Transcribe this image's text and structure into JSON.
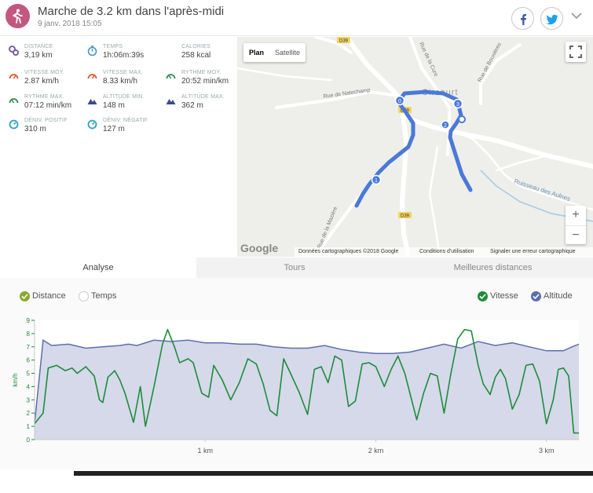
{
  "header": {
    "title": "Marche de 3.2 km dans l'après-midi",
    "date": "9 janv. 2018 15:05",
    "activity_icon": "walk-icon",
    "accent_color": "#c2587f"
  },
  "stats": [
    {
      "label": "DISTANCE",
      "value": "3,19 km",
      "icon": "distance-icon",
      "color": "#7b5ea7"
    },
    {
      "label": "TEMPS",
      "value": "1h:06m:39s",
      "icon": "stopwatch-icon",
      "color": "#3b8fd8"
    },
    {
      "label": "CALORIES",
      "value": "258 kcal",
      "icon": "flame-icon",
      "color": "#e0582b"
    },
    {
      "label": "VITESSE MOY.",
      "value": "2.87 km/h",
      "icon": "speedometer-icon",
      "color": "#e0582b"
    },
    {
      "label": "VITESSE MAX.",
      "value": "8.33 km/h",
      "icon": "speedometer-icon",
      "color": "#e0582b"
    },
    {
      "label": "RYTHME MOY.",
      "value": "20:52 min/km",
      "icon": "pace-icon",
      "color": "#2e8b57"
    },
    {
      "label": "RYTHME MAX.",
      "value": "07:12 min/km",
      "icon": "pace-icon",
      "color": "#2e8b57"
    },
    {
      "label": "ALTITUDE MIN.",
      "value": "148 m",
      "icon": "mountain-icon",
      "color": "#3a4a8c"
    },
    {
      "label": "ALTITUDE MAX.",
      "value": "362 m",
      "icon": "mountain-icon",
      "color": "#3a4a8c"
    },
    {
      "label": "DÉNIV. POSITIF",
      "value": "310 m",
      "icon": "gauge-icon",
      "color": "#29a3c4"
    },
    {
      "label": "DÉNIV. NÉGATIF",
      "value": "127 m",
      "icon": "gauge-icon",
      "color": "#29a3c4"
    }
  ],
  "map": {
    "type_options": [
      "Plan",
      "Satellite"
    ],
    "selected_type": "Plan",
    "zoom_in": "+",
    "zoom_out": "−",
    "logo": "Google",
    "footer": [
      "Données cartographiques ©2018 Google",
      "Conditions d'utilisation",
      "Signaler une erreur cartographique"
    ],
    "labels": {
      "road_d39a": "D39",
      "road_d39b": "D39",
      "road_d39c": "D39",
      "rue_natechamp": "Rue de Natechamp",
      "rue_baulieres": "Rue de Bouxières",
      "rue_cure": "Rue de la Cure",
      "ruisseau": "Ruisseau des Aulnes",
      "rue_maziere": "Rue de la Mazière",
      "village": "Circourt"
    },
    "markers": [
      "0",
      "1",
      "2",
      "3"
    ]
  },
  "tabs": [
    {
      "label": "Analyse",
      "active": true
    },
    {
      "label": "Tours",
      "active": false
    },
    {
      "label": "Meilleures distances",
      "active": false
    }
  ],
  "chart_toggles": {
    "left": [
      {
        "label": "Distance",
        "checked": true,
        "color": "#8aa82e"
      },
      {
        "label": "Temps",
        "checked": false,
        "color": "#cccccc"
      }
    ],
    "right": [
      {
        "label": "Vitesse",
        "checked": true,
        "color": "#1e8c3a"
      },
      {
        "label": "Altitude",
        "checked": true,
        "color": "#5b6fae"
      }
    ]
  },
  "chart_data": {
    "type": "line",
    "ylabel": "km/h",
    "ylim": [
      0,
      9
    ],
    "yticks": [
      "0",
      "1",
      "2",
      "3",
      "4",
      "5",
      "6",
      "7",
      "8",
      "9"
    ],
    "xlim": [
      0,
      3.19
    ],
    "xticks": [
      {
        "v": 1,
        "label": "1 km"
      },
      {
        "v": 2,
        "label": "2 km"
      },
      {
        "v": 3,
        "label": "3 km"
      }
    ],
    "series": [
      {
        "name": "Altitude",
        "kind": "area",
        "color": "#5b6fae",
        "fill": "#d5d9ea",
        "points": [
          [
            0,
            1.2
          ],
          [
            0.05,
            7.5
          ],
          [
            0.1,
            7.1
          ],
          [
            0.2,
            7.2
          ],
          [
            0.3,
            6.9
          ],
          [
            0.4,
            7.0
          ],
          [
            0.5,
            7.1
          ],
          [
            0.55,
            7.2
          ],
          [
            0.6,
            7.1
          ],
          [
            0.7,
            7.5
          ],
          [
            0.8,
            7.4
          ],
          [
            0.9,
            7.5
          ],
          [
            1.0,
            7.3
          ],
          [
            1.1,
            7.3
          ],
          [
            1.2,
            7.2
          ],
          [
            1.3,
            7.2
          ],
          [
            1.4,
            7.0
          ],
          [
            1.5,
            6.9
          ],
          [
            1.6,
            6.9
          ],
          [
            1.7,
            7.1
          ],
          [
            1.8,
            6.8
          ],
          [
            1.9,
            6.6
          ],
          [
            2.0,
            6.5
          ],
          [
            2.1,
            6.5
          ],
          [
            2.2,
            6.6
          ],
          [
            2.3,
            6.9
          ],
          [
            2.4,
            7.2
          ],
          [
            2.5,
            6.9
          ],
          [
            2.6,
            7.4
          ],
          [
            2.7,
            7.1
          ],
          [
            2.8,
            7.3
          ],
          [
            2.9,
            7.0
          ],
          [
            3.0,
            6.7
          ],
          [
            3.1,
            6.7
          ],
          [
            3.15,
            7.0
          ],
          [
            3.19,
            7.2
          ]
        ]
      },
      {
        "name": "Vitesse",
        "kind": "line",
        "color": "#1e8c3a",
        "points": [
          [
            0,
            1.2
          ],
          [
            0.05,
            2.0
          ],
          [
            0.08,
            5.4
          ],
          [
            0.13,
            5.6
          ],
          [
            0.18,
            5.2
          ],
          [
            0.22,
            5.4
          ],
          [
            0.25,
            5.0
          ],
          [
            0.3,
            5.5
          ],
          [
            0.35,
            4.8
          ],
          [
            0.38,
            3.0
          ],
          [
            0.4,
            2.8
          ],
          [
            0.43,
            4.7
          ],
          [
            0.47,
            5.2
          ],
          [
            0.5,
            4.5
          ],
          [
            0.53,
            3.5
          ],
          [
            0.58,
            1.3
          ],
          [
            0.62,
            4.0
          ],
          [
            0.65,
            1.0
          ],
          [
            0.7,
            4.0
          ],
          [
            0.75,
            7.2
          ],
          [
            0.78,
            8.3
          ],
          [
            0.82,
            7.0
          ],
          [
            0.85,
            5.8
          ],
          [
            0.9,
            6.1
          ],
          [
            0.93,
            5.8
          ],
          [
            0.98,
            3.5
          ],
          [
            1.02,
            3.2
          ],
          [
            1.05,
            5.6
          ],
          [
            1.1,
            4.5
          ],
          [
            1.15,
            3.0
          ],
          [
            1.2,
            4.3
          ],
          [
            1.25,
            6.1
          ],
          [
            1.3,
            5.7
          ],
          [
            1.34,
            4.2
          ],
          [
            1.38,
            2.2
          ],
          [
            1.42,
            1.8
          ],
          [
            1.46,
            6.1
          ],
          [
            1.5,
            5.0
          ],
          [
            1.55,
            3.6
          ],
          [
            1.6,
            1.9
          ],
          [
            1.64,
            5.3
          ],
          [
            1.68,
            5.5
          ],
          [
            1.72,
            4.3
          ],
          [
            1.76,
            6.3
          ],
          [
            1.8,
            6.0
          ],
          [
            1.84,
            2.5
          ],
          [
            1.88,
            2.9
          ],
          [
            1.92,
            5.7
          ],
          [
            1.96,
            5.8
          ],
          [
            2.0,
            5.5
          ],
          [
            2.05,
            4.0
          ],
          [
            2.09,
            5.3
          ],
          [
            2.13,
            6.3
          ],
          [
            2.17,
            5.0
          ],
          [
            2.2,
            3.5
          ],
          [
            2.24,
            1.5
          ],
          [
            2.28,
            3.5
          ],
          [
            2.32,
            5.0
          ],
          [
            2.36,
            4.8
          ],
          [
            2.4,
            2.0
          ],
          [
            2.44,
            5.0
          ],
          [
            2.48,
            7.6
          ],
          [
            2.52,
            8.3
          ],
          [
            2.56,
            8.2
          ],
          [
            2.6,
            5.6
          ],
          [
            2.63,
            4.2
          ],
          [
            2.67,
            3.4
          ],
          [
            2.7,
            4.7
          ],
          [
            2.73,
            5.3
          ],
          [
            2.76,
            4.6
          ],
          [
            2.8,
            2.3
          ],
          [
            2.84,
            3.4
          ],
          [
            2.88,
            5.6
          ],
          [
            2.92,
            5.7
          ],
          [
            2.96,
            4.4
          ],
          [
            3.0,
            1.2
          ],
          [
            3.04,
            3.0
          ],
          [
            3.07,
            5.3
          ],
          [
            3.1,
            5.4
          ],
          [
            3.13,
            4.8
          ],
          [
            3.16,
            0.5
          ],
          [
            3.19,
            0.5
          ]
        ]
      }
    ]
  }
}
